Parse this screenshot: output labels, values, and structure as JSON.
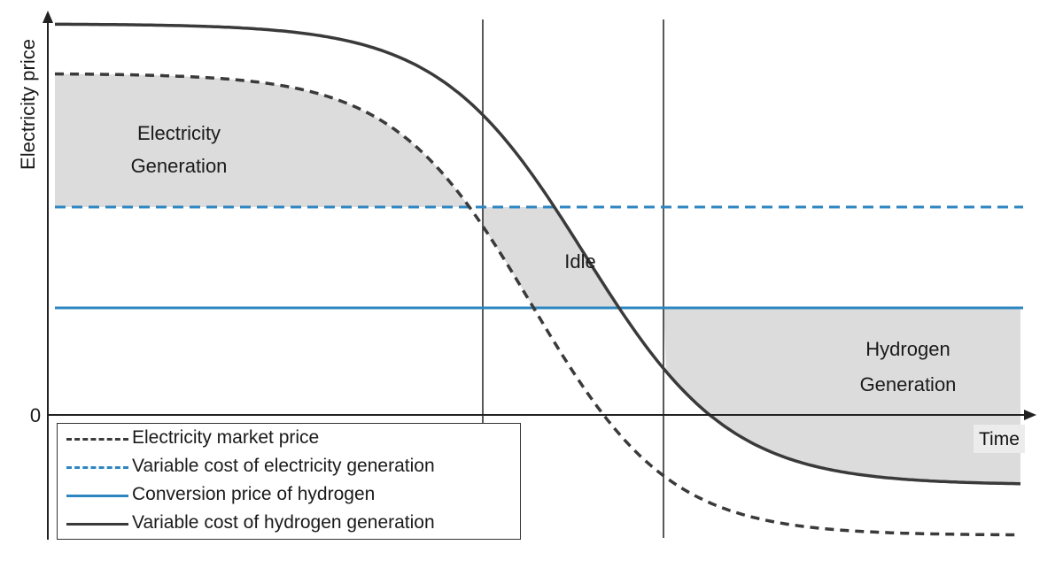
{
  "axes": {
    "y_label": "Electricity price",
    "x_label": "Time",
    "zero_label": "0"
  },
  "regions": {
    "electricity_generation": [
      "Electricity",
      "Generation"
    ],
    "idle": "Idle",
    "hydrogen_generation": [
      "Hydrogen",
      "Generation"
    ]
  },
  "legend": [
    {
      "label": "Electricity market price",
      "style": "dashed",
      "color": "#3a3a3a"
    },
    {
      "label": "Variable cost of electricity generation",
      "style": "dashed",
      "color": "#2e86c1"
    },
    {
      "label": "Conversion price of hydrogen",
      "style": "solid",
      "color": "#2e86c1"
    },
    {
      "label": "Variable cost of hydrogen generation",
      "style": "solid",
      "color": "#3a3a3a"
    }
  ],
  "colors": {
    "shade": "#dcdcdc",
    "blue": "#2e86c1",
    "dark": "#3a3a3a",
    "axis": "#222222"
  }
}
